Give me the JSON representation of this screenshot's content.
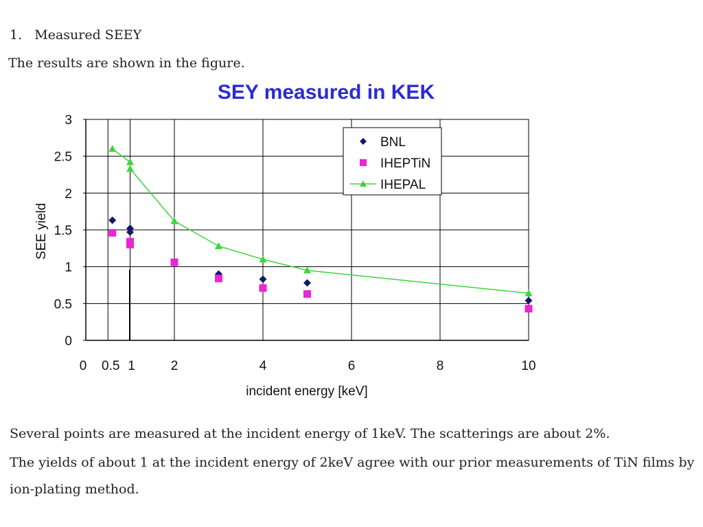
{
  "document": {
    "heading_number": "1.",
    "heading_text": "Measured SEEY",
    "intro": "The results are shown in the figure.",
    "paragraph_1": "Several points are measured at the incident energy of 1keV. The scatterings are about 2%.",
    "paragraph_2": "The yields of about 1 at the incident energy of 2keV agree with our prior measurements of TiN films by ion-plating method."
  },
  "chart_data": {
    "type": "scatter",
    "title": "SEY measured in KEK",
    "xlabel": "incident energy [keV]",
    "ylabel": "SEE yield",
    "xlim": [
      0,
      10
    ],
    "ylim": [
      0,
      3
    ],
    "x_ticks": [
      0,
      0.5,
      1,
      2,
      4,
      6,
      8,
      10
    ],
    "x_tick_labels": [
      "0",
      "0.5",
      "1",
      "2",
      "4",
      "6",
      "8",
      "10"
    ],
    "y_ticks": [
      0,
      0.5,
      1,
      1.5,
      2,
      2.5,
      3
    ],
    "y_tick_labels": [
      "0",
      "0.5",
      "1",
      "1.5",
      "2",
      "2.5",
      "3"
    ],
    "x_gridlines": [
      0.5,
      1,
      2,
      4,
      6,
      8,
      10
    ],
    "y_gridlines": [
      0.5,
      1,
      1.5,
      2,
      2.5,
      3
    ],
    "grid": true,
    "legend_position": "top-right",
    "series": [
      {
        "name": "BNL",
        "marker": "diamond",
        "color": "#10186a",
        "line": false,
        "points": [
          [
            0.6,
            1.63
          ],
          [
            1.0,
            1.52
          ],
          [
            1.0,
            1.47
          ],
          [
            2.0,
            1.06
          ],
          [
            3.0,
            0.9
          ],
          [
            4.0,
            0.83
          ],
          [
            5.0,
            0.78
          ],
          [
            10.0,
            0.54
          ]
        ]
      },
      {
        "name": "IHEPTiN",
        "marker": "square",
        "color": "#e826d2",
        "line": false,
        "points": [
          [
            0.6,
            1.46
          ],
          [
            1.0,
            1.34
          ],
          [
            1.0,
            1.3
          ],
          [
            2.0,
            1.06
          ],
          [
            3.0,
            0.84
          ],
          [
            4.0,
            0.71
          ],
          [
            5.0,
            0.63
          ],
          [
            10.0,
            0.43
          ]
        ]
      },
      {
        "name": "IHEPAL",
        "marker": "triangle",
        "color": "#3ad63a",
        "line": true,
        "points": [
          [
            0.6,
            2.6
          ],
          [
            1.0,
            2.42
          ],
          [
            1.0,
            2.33
          ],
          [
            2.0,
            1.62
          ],
          [
            3.0,
            1.28
          ],
          [
            4.0,
            1.1
          ],
          [
            5.0,
            0.95
          ],
          [
            10.0,
            0.64
          ]
        ]
      }
    ],
    "annotations": [
      {
        "type": "vertical-line",
        "x": 1.0,
        "y_from": 0,
        "y_to": 0.96
      }
    ]
  }
}
